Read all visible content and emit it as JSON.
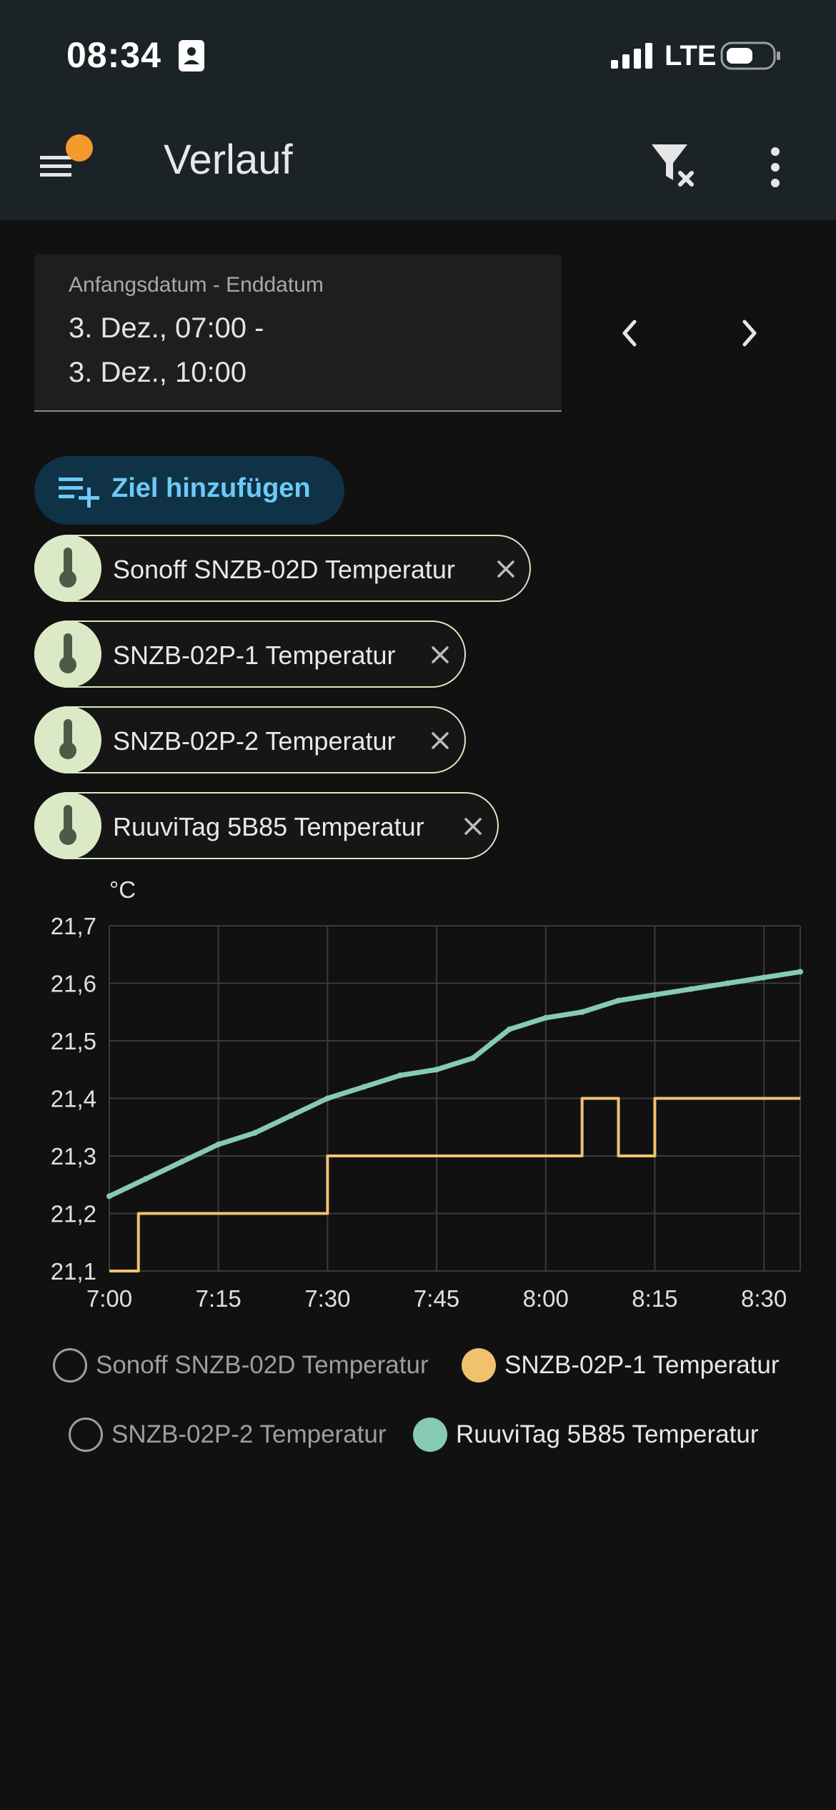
{
  "status_bar": {
    "time": "08:34",
    "network": "LTE"
  },
  "app_bar": {
    "title": "Verlauf",
    "icons": [
      "menu-icon",
      "notification-dot",
      "filter-clear-icon",
      "more-vert-icon"
    ],
    "notification_color": "#f49a2c"
  },
  "date_range": {
    "label": "Anfangsdatum - Enddatum",
    "value": "3. Dez., 07:00 -\n3. Dez., 10:00"
  },
  "add_target": {
    "label": "Ziel hinzufügen"
  },
  "chips": [
    {
      "label": "Sonoff SNZB-02D Temperatur",
      "icon": "thermometer-icon"
    },
    {
      "label": "SNZB-02P-1 Temperatur",
      "icon": "thermometer-icon"
    },
    {
      "label": "SNZB-02P-2 Temperatur",
      "icon": "thermometer-icon"
    },
    {
      "label": "RuuviTag 5B85 Temperatur",
      "icon": "thermometer-icon"
    }
  ],
  "legend": [
    {
      "label": "Sonoff SNZB-02D Temperatur",
      "active": false,
      "color": "#9e9e9e"
    },
    {
      "label": "SNZB-02P-1 Temperatur",
      "active": true,
      "color": "#f0c26e"
    },
    {
      "label": "SNZB-02P-2 Temperatur",
      "active": false,
      "color": "#9e9e9e"
    },
    {
      "label": "RuuviTag 5B85 Temperatur",
      "active": true,
      "color": "#86cbb1"
    }
  ],
  "chart_data": {
    "type": "line",
    "ylabel": "°C",
    "ylim": [
      21.1,
      21.7
    ],
    "xlim": [
      "7:00",
      "8:35"
    ],
    "y_ticks": [
      "21,7",
      "21,6",
      "21,5",
      "21,4",
      "21,3",
      "21,2",
      "21,1"
    ],
    "x_ticks": [
      "7:00",
      "7:15",
      "7:30",
      "7:45",
      "8:00",
      "8:15",
      "8:30"
    ],
    "grid": true,
    "series": [
      {
        "name": "SNZB-02P-1 Temperatur",
        "color": "#f0c26e",
        "step": true,
        "points": [
          {
            "t": "7:00",
            "v": 21.1
          },
          {
            "t": "7:04",
            "v": 21.2
          },
          {
            "t": "7:30",
            "v": 21.3
          },
          {
            "t": "8:05",
            "v": 21.4
          },
          {
            "t": "8:10",
            "v": 21.3
          },
          {
            "t": "8:15",
            "v": 21.4
          },
          {
            "t": "8:35",
            "v": 21.4
          }
        ]
      },
      {
        "name": "RuuviTag 5B85 Temperatur",
        "color": "#86cbb1",
        "step": false,
        "points": [
          {
            "t": "7:00",
            "v": 21.23
          },
          {
            "t": "7:05",
            "v": 21.26
          },
          {
            "t": "7:10",
            "v": 21.29
          },
          {
            "t": "7:15",
            "v": 21.32
          },
          {
            "t": "7:20",
            "v": 21.34
          },
          {
            "t": "7:25",
            "v": 21.37
          },
          {
            "t": "7:30",
            "v": 21.4
          },
          {
            "t": "7:35",
            "v": 21.42
          },
          {
            "t": "7:40",
            "v": 21.44
          },
          {
            "t": "7:45",
            "v": 21.45
          },
          {
            "t": "7:50",
            "v": 21.47
          },
          {
            "t": "7:55",
            "v": 21.52
          },
          {
            "t": "8:00",
            "v": 21.54
          },
          {
            "t": "8:05",
            "v": 21.55
          },
          {
            "t": "8:10",
            "v": 21.57
          },
          {
            "t": "8:15",
            "v": 21.58
          },
          {
            "t": "8:20",
            "v": 21.59
          },
          {
            "t": "8:25",
            "v": 21.6
          },
          {
            "t": "8:30",
            "v": 21.61
          },
          {
            "t": "8:35",
            "v": 21.62
          }
        ]
      }
    ]
  }
}
